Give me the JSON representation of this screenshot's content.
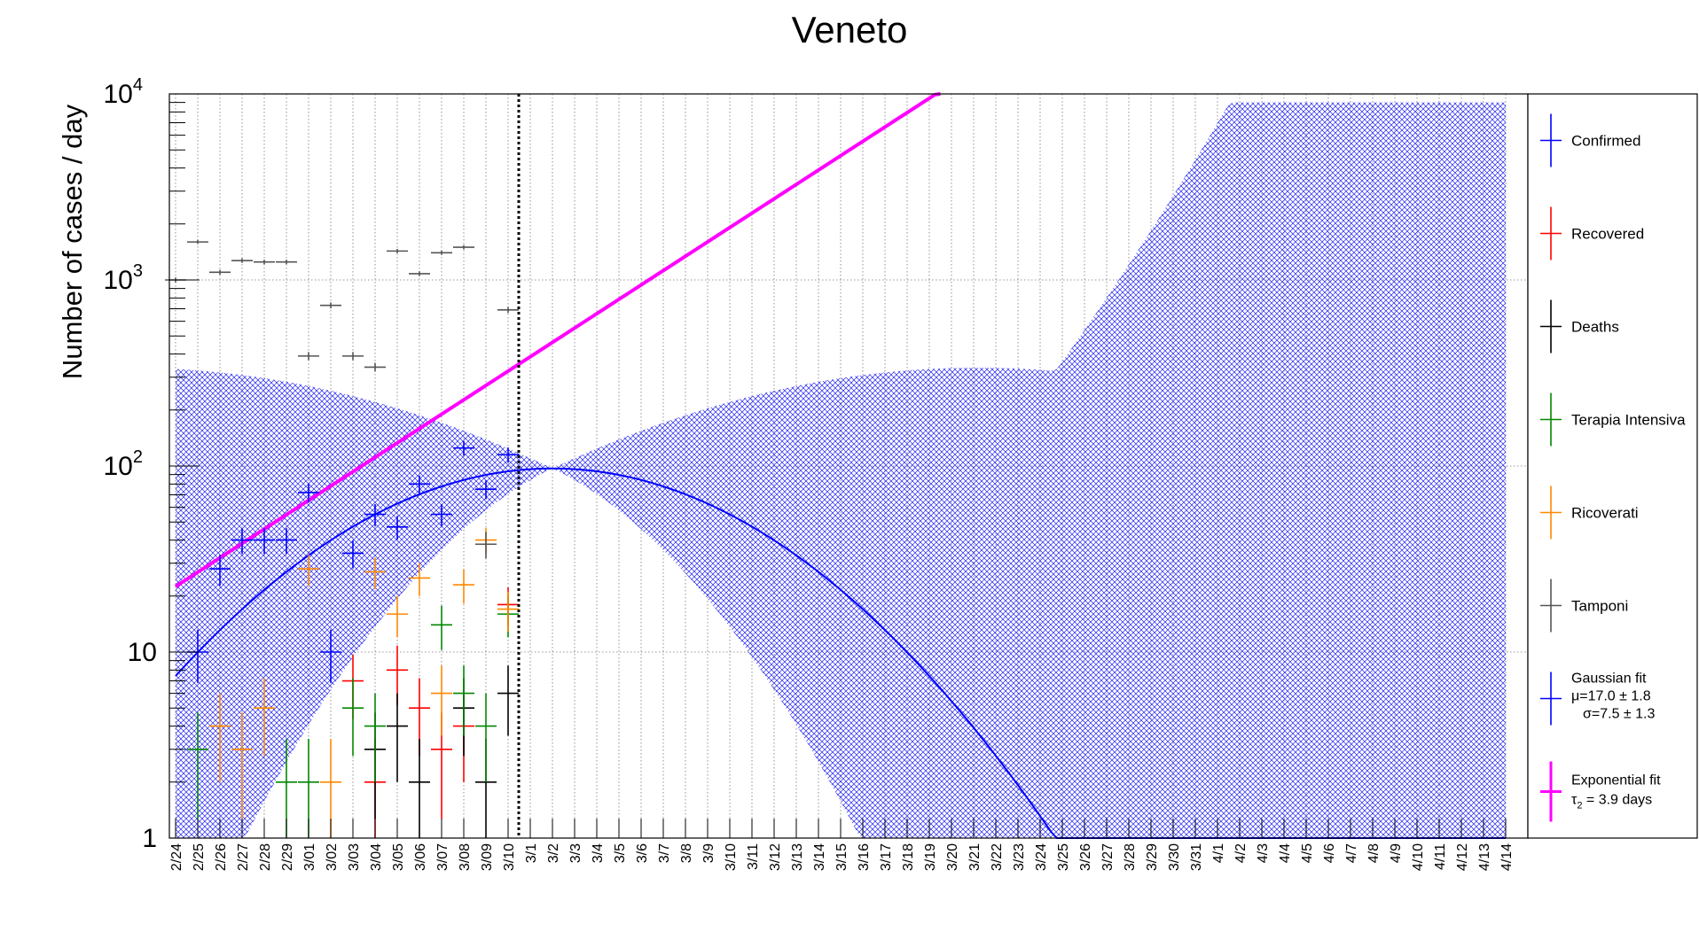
{
  "chart_data": {
    "type": "scatter",
    "title": "Veneto",
    "ylabel": "Number of cases / day",
    "xlabel": "",
    "y_scale": "log",
    "ylim": [
      1,
      10000
    ],
    "grid": true,
    "legend_position": "right",
    "categories": [
      "2/24",
      "2/25",
      "2/26",
      "2/27",
      "2/28",
      "2/29",
      "3/01",
      "3/02",
      "3/03",
      "3/04",
      "3/05",
      "3/06",
      "3/07",
      "3/08",
      "3/09",
      "3/10",
      "3/1",
      "3/2",
      "3/3",
      "3/4",
      "3/5",
      "3/6",
      "3/7",
      "3/8",
      "3/9",
      "3/10",
      "3/11",
      "3/12",
      "3/13",
      "3/14",
      "3/15",
      "3/16",
      "3/17",
      "3/18",
      "3/19",
      "3/20",
      "3/21",
      "3/22",
      "3/23",
      "3/24",
      "3/25",
      "3/26",
      "3/27",
      "3/28",
      "3/29",
      "3/30",
      "3/31",
      "4/1",
      "4/2",
      "4/3",
      "4/4",
      "4/5",
      "4/6",
      "4/7",
      "4/8",
      "4/9",
      "4/10",
      "4/11",
      "4/12",
      "4/13",
      "4/14"
    ],
    "y_ticks": [
      "1",
      "10",
      "10",
      "10",
      "10"
    ],
    "y_tick_exponents": [
      "",
      "",
      "2",
      "3",
      "4"
    ],
    "fit_boundary_after": "3/10",
    "series": [
      {
        "name": "Confirmed",
        "color": "#0000ff",
        "x": [
          "2/25",
          "2/26",
          "2/27",
          "2/28",
          "2/29",
          "3/01",
          "3/02",
          "3/03",
          "3/04",
          "3/05",
          "3/06",
          "3/07",
          "3/08",
          "3/09",
          "3/10"
        ],
        "values": [
          10,
          28,
          40,
          40,
          40,
          72,
          10,
          34,
          55,
          47,
          80,
          55,
          125,
          75,
          115
        ]
      },
      {
        "name": "Recovered",
        "color": "#ff0000",
        "x": [
          "3/03",
          "3/04",
          "3/05",
          "3/06",
          "3/07",
          "3/08",
          "3/10"
        ],
        "values": [
          7,
          2,
          8,
          5,
          3,
          4,
          18
        ]
      },
      {
        "name": "Deaths",
        "color": "#000000",
        "x": [
          "3/04",
          "3/05",
          "3/06",
          "3/08",
          "3/09",
          "3/10"
        ],
        "values": [
          3,
          4,
          2,
          5,
          2,
          6
        ]
      },
      {
        "name": "Terapia Intensiva",
        "color": "#008800",
        "x": [
          "2/25",
          "2/29",
          "3/01",
          "3/03",
          "3/04",
          "3/07",
          "3/08",
          "3/09",
          "3/10"
        ],
        "values": [
          3,
          2,
          2,
          5,
          4,
          14,
          6,
          4,
          16
        ]
      },
      {
        "name": "Ricoverati",
        "color": "#ff8800",
        "x": [
          "2/26",
          "2/27",
          "2/28",
          "3/01",
          "3/02",
          "3/04",
          "3/05",
          "3/06",
          "3/07",
          "3/08",
          "3/09",
          "3/10"
        ],
        "values": [
          4,
          3,
          5,
          28,
          2,
          27,
          16,
          25,
          6,
          23,
          40,
          17
        ]
      },
      {
        "name": "Tamponi",
        "color": "#555555",
        "x": [
          "2/24",
          "2/25",
          "2/26",
          "2/27",
          "2/28",
          "2/29",
          "3/01",
          "3/02",
          "3/03",
          "3/04",
          "3/05",
          "3/06",
          "3/07",
          "3/08",
          "3/09",
          "3/10"
        ],
        "values": [
          1000,
          1600,
          1100,
          1270,
          1250,
          1250,
          390,
          730,
          390,
          340,
          1430,
          1080,
          1400,
          1500,
          38,
          690
        ]
      }
    ],
    "fits": [
      {
        "name": "Gaussian fit",
        "line1": "μ=17.0 ± 1.8",
        "line2": "σ=7.5 ± 1.3",
        "color": "#0000ff",
        "amplitude": 97,
        "mu": 17.0,
        "sigma": 7.5
      },
      {
        "name": "Exponential fit",
        "line1": "τ",
        "line1_sub": "2",
        "line1_rest": " = 3.9 days",
        "color": "#ff00ff",
        "tau2_days": 3.9,
        "value_at_2/24": 22.5
      }
    ]
  }
}
